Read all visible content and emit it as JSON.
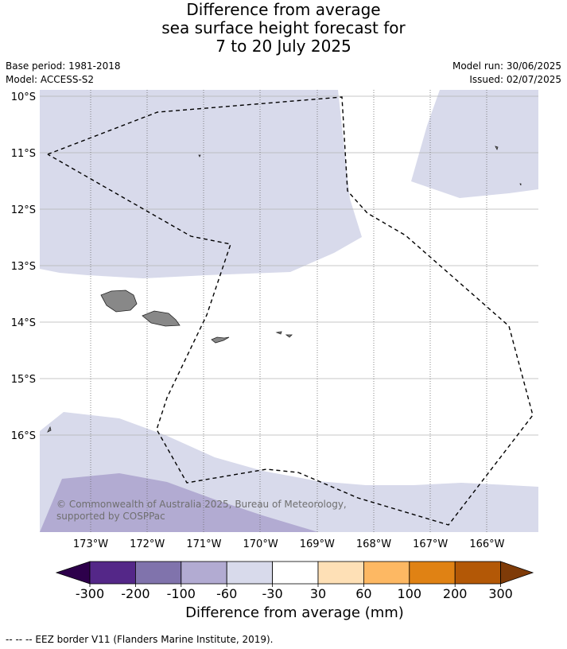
{
  "title_lines": [
    "Difference from average",
    "sea surface height forecast for",
    "7 to 20 July 2025"
  ],
  "base_period": "Base period: 1981-2018",
  "model": "Model: ACCESS-S2",
  "model_run": "Model run: 30/06/2025",
  "issued": "Issued: 02/07/2025",
  "lat_labels": [
    "10°S",
    "11°S",
    "12°S",
    "13°S",
    "14°S",
    "15°S",
    "16°S"
  ],
  "lon_labels": [
    "173°W",
    "172°W",
    "171°W",
    "170°W",
    "169°W",
    "168°W",
    "167°W",
    "166°W"
  ],
  "copyright": "© Commonwealth of Australia 2025, Bureau of Meteorology, supported by COSPPac",
  "colorbar": {
    "title": "Difference from average (mm)",
    "ticks": [
      "-300",
      "-200",
      "-100",
      "-60",
      "-30",
      "30",
      "60",
      "100",
      "200",
      "300"
    ],
    "colors": [
      "#2d004b",
      "#542788",
      "#8073ac",
      "#b2abd2",
      "#d8daeb",
      "#ffffff",
      "#fee0b6",
      "#fdb863",
      "#e08214",
      "#b35806",
      "#7f3b08"
    ]
  },
  "footer": "--  --  -- EEZ border V11 (Flanders Marine Institute, 2019)."
}
